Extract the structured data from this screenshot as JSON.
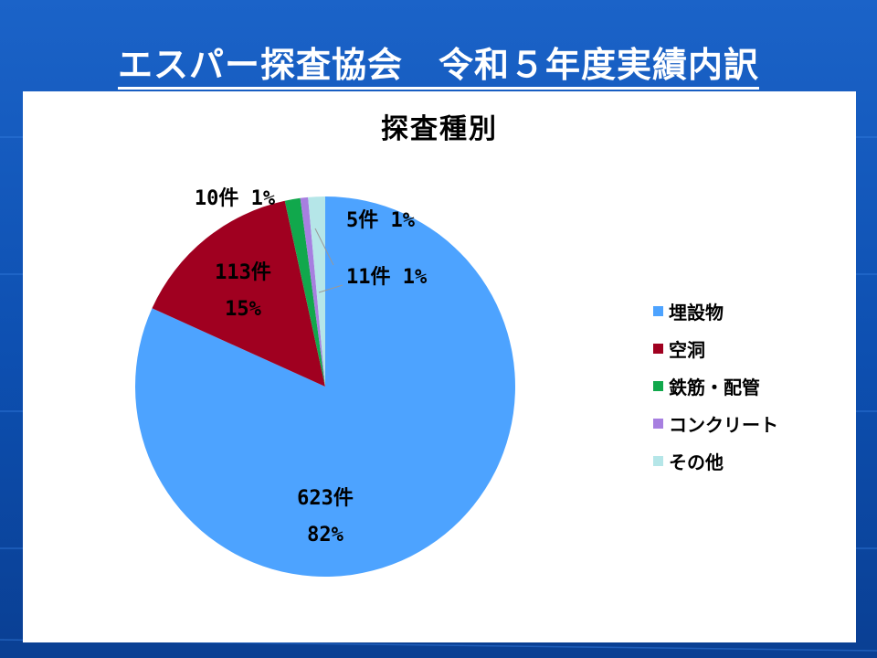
{
  "slide": {
    "title": "エスパー探査協会　令和５年度実績内訳"
  },
  "chart_data": {
    "type": "pie",
    "title": "探査種別",
    "legend_position": "right",
    "slices": [
      {
        "name": "埋設物",
        "count": 623,
        "count_label": "623件",
        "percent_label": "82%",
        "color": "#4da3ff"
      },
      {
        "name": "空洞",
        "count": 113,
        "count_label": "113件",
        "percent_label": "15%",
        "color": "#a00020"
      },
      {
        "name": "鉄筋・配管",
        "count": 10,
        "count_label": "10件",
        "percent_label": "1%",
        "color": "#11a84c"
      },
      {
        "name": "コンクリート",
        "count": 5,
        "count_label": "5件",
        "percent_label": "1%",
        "color": "#a77fe0"
      },
      {
        "name": "その他",
        "count": 11,
        "count_label": "11件",
        "percent_label": "1%",
        "color": "#b5e6e8"
      }
    ]
  }
}
